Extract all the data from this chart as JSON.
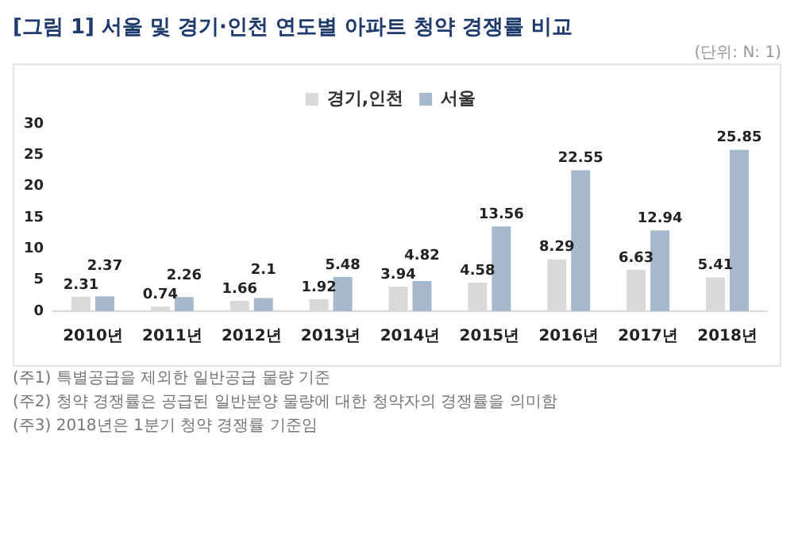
{
  "chart_data": {
    "type": "bar",
    "title": "[그림 1] 서울 및 경기·인천 연도별 아파트 청약 경쟁률 비교",
    "subtitle": "(단위: N: 1)",
    "categories": [
      "2010년",
      "2011년",
      "2012년",
      "2013년",
      "2014년",
      "2015년",
      "2016년",
      "2017년",
      "2018년"
    ],
    "series": [
      {
        "name": "경기,인천",
        "color": "#d9d9d9",
        "values": [
          2.31,
          0.74,
          1.66,
          1.92,
          3.94,
          4.58,
          8.29,
          6.63,
          5.41
        ]
      },
      {
        "name": "서울",
        "color": "#a5b8cc",
        "values": [
          2.37,
          2.26,
          2.1,
          5.48,
          4.82,
          13.56,
          22.55,
          12.94,
          25.85
        ]
      }
    ],
    "ylim": [
      0,
      30
    ],
    "yticks": [
      0,
      5,
      10,
      15,
      20,
      25,
      30
    ],
    "grid": false,
    "legend": "top",
    "data_labels": true,
    "annotations": [
      "(주1) 특별공급을 제외한 일반공급 물량 기준",
      "(주2) 청약 경쟁률은 공급된 일반분양 물량에 대한  청약자의 경쟁률을 의미함",
      "(주3) 2018년은 1분기 청약 경쟁률 기준임"
    ]
  }
}
